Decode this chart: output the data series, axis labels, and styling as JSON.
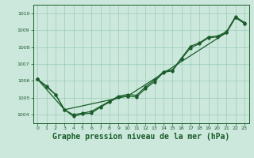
{
  "background_color": "#cce8dc",
  "grid_color": "#99ccb8",
  "line_color": "#1a5c2a",
  "title": "Graphe pression niveau de la mer (hPa)",
  "title_fontsize": 7,
  "title_color": "#1a5c2a",
  "xlim": [
    -0.5,
    23.5
  ],
  "ylim": [
    1003.5,
    1010.5
  ],
  "yticks": [
    1004,
    1005,
    1006,
    1007,
    1008,
    1009,
    1010
  ],
  "xticks": [
    0,
    1,
    2,
    3,
    4,
    5,
    6,
    7,
    8,
    9,
    10,
    11,
    12,
    13,
    14,
    15,
    16,
    17,
    18,
    19,
    20,
    21,
    22,
    23
  ],
  "series1_x": [
    0,
    1,
    2,
    3,
    4,
    5,
    6,
    7,
    8,
    9,
    10,
    11,
    12,
    13,
    14,
    15,
    16,
    17,
    18,
    19,
    20,
    21,
    22,
    23
  ],
  "series1_y": [
    1006.1,
    1005.7,
    1005.2,
    1004.3,
    1003.9,
    1004.05,
    1004.1,
    1004.45,
    1004.75,
    1005.05,
    1005.1,
    1005.05,
    1005.55,
    1005.95,
    1006.5,
    1006.6,
    1007.3,
    1007.95,
    1008.2,
    1008.55,
    1008.6,
    1008.85,
    1009.75,
    1009.4
  ],
  "series2_x": [
    0,
    1,
    2,
    3,
    4,
    5,
    6,
    7,
    8,
    9,
    10,
    11,
    12,
    13,
    14,
    15,
    16,
    17,
    18,
    19,
    20,
    21,
    22,
    23
  ],
  "series2_y": [
    1006.1,
    1005.65,
    1005.2,
    1004.3,
    1004.0,
    1004.1,
    1004.2,
    1004.5,
    1004.8,
    1005.1,
    1005.2,
    1005.15,
    1005.65,
    1006.05,
    1006.55,
    1006.65,
    1007.35,
    1008.05,
    1008.25,
    1008.6,
    1008.65,
    1008.9,
    1009.8,
    1009.45
  ],
  "series3_x": [
    0,
    3,
    10,
    21,
    22,
    23
  ],
  "series3_y": [
    1006.1,
    1004.3,
    1005.1,
    1008.85,
    1009.75,
    1009.4
  ]
}
